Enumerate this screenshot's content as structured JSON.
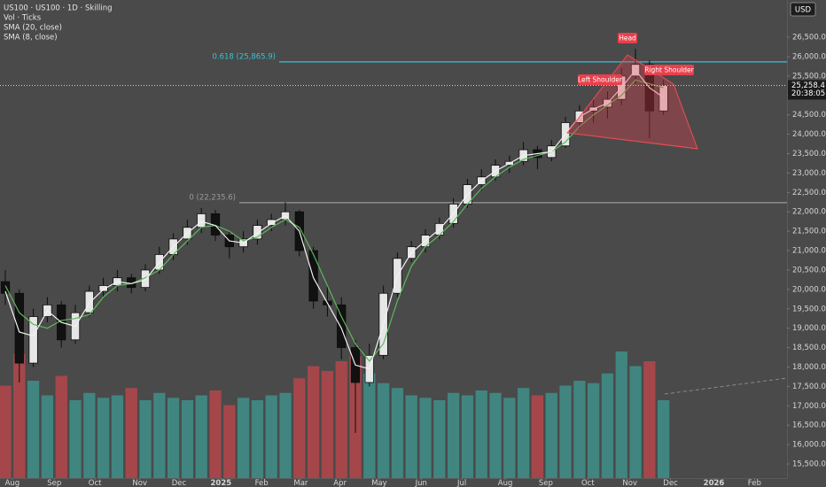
{
  "chart_data": {
    "type": "candlestick",
    "title": "US100 · US100 · 1D · Skilling",
    "currency": "USD",
    "up_color": "#e6e6e6",
    "down_color": "#111111",
    "open": [
      20200,
      19900,
      18100,
      19300,
      19600,
      18700,
      19400,
      19950,
      20100,
      20300,
      20050,
      20500,
      20900,
      21300,
      21600,
      21950,
      21400,
      21100,
      21300,
      21650,
      21800,
      22000,
      21000,
      19700,
      19600,
      18500,
      17600,
      18300,
      19900,
      20800,
      21100,
      21400,
      21700,
      22200,
      22700,
      22900,
      23200,
      23300,
      23600,
      23400,
      23700,
      24300,
      24600,
      24700,
      24900,
      25500,
      25800,
      24600
    ],
    "high": [
      20500,
      20000,
      19500,
      19800,
      19700,
      19600,
      20100,
      20300,
      20500,
      20400,
      20650,
      21100,
      21450,
      21800,
      22100,
      22050,
      21500,
      21500,
      21800,
      21950,
      22250,
      22050,
      21100,
      20100,
      19800,
      18700,
      18600,
      20100,
      20950,
      21250,
      21550,
      21850,
      22350,
      22850,
      23100,
      23350,
      23450,
      23800,
      23700,
      23850,
      24450,
      24750,
      24900,
      25100,
      25700,
      26200,
      25900,
      25400
    ],
    "low": [
      19600,
      17600,
      18000,
      19150,
      18500,
      18600,
      19300,
      19800,
      19950,
      19900,
      19950,
      20400,
      20750,
      21150,
      21450,
      21250,
      20800,
      20950,
      21150,
      21500,
      21650,
      20850,
      19500,
      19300,
      18200,
      16300,
      17500,
      18200,
      19800,
      20700,
      20950,
      21300,
      21600,
      22100,
      22550,
      22800,
      23000,
      23200,
      23100,
      23300,
      23650,
      24150,
      24300,
      24400,
      24750,
      25300,
      23900,
      24500
    ],
    "close": [
      19900,
      18100,
      19300,
      19600,
      18700,
      19400,
      19950,
      20100,
      20300,
      20050,
      20500,
      20900,
      21300,
      21600,
      21950,
      21400,
      21100,
      21300,
      21650,
      21800,
      22000,
      21000,
      19700,
      19600,
      18500,
      17600,
      18300,
      19900,
      20800,
      21100,
      21400,
      21700,
      22200,
      22700,
      22900,
      23200,
      23300,
      23600,
      23400,
      23700,
      24300,
      24600,
      24700,
      24900,
      25500,
      25800,
      24600,
      25258.4
    ],
    "volume": {
      "name": "Vol · Ticks",
      "up_color": "#3f8f8a",
      "down_color": "#b5474a",
      "values": [
        190,
        255,
        200,
        170,
        210,
        160,
        175,
        165,
        170,
        185,
        160,
        175,
        165,
        160,
        170,
        180,
        150,
        165,
        160,
        170,
        175,
        205,
        230,
        220,
        240,
        250,
        215,
        195,
        185,
        170,
        165,
        160,
        175,
        170,
        180,
        175,
        165,
        185,
        170,
        175,
        190,
        200,
        195,
        215,
        260,
        230,
        240,
        160
      ]
    },
    "series": [
      {
        "name": "SMA (20, close)",
        "color": "#5cb85c",
        "values": [
          20100,
          19400,
          19100,
          19000,
          19200,
          19250,
          19350,
          19800,
          20100,
          20150,
          20300,
          20500,
          20900,
          21250,
          21600,
          21650,
          21500,
          21250,
          21350,
          21600,
          21800,
          21600,
          20900,
          20100,
          19300,
          18600,
          18150,
          18600,
          19700,
          20600,
          21100,
          21400,
          21750,
          22200,
          22600,
          22900,
          23150,
          23350,
          23450,
          23550,
          23800,
          24200,
          24500,
          24750,
          25000,
          25400,
          25300,
          25200
        ]
      },
      {
        "name": "SMA (8, close)",
        "color": "#f2f2f2",
        "values": [
          19950,
          18900,
          18800,
          19450,
          19150,
          19050,
          19650,
          20000,
          20200,
          20150,
          20250,
          20700,
          21100,
          21450,
          21750,
          21650,
          21250,
          21200,
          21450,
          21700,
          21900,
          21500,
          20300,
          19650,
          19000,
          18050,
          17950,
          19100,
          20350,
          20950,
          21250,
          21550,
          21950,
          22450,
          22800,
          23050,
          23250,
          23450,
          23500,
          23550,
          24000,
          24450,
          24650,
          24800,
          25200,
          25650,
          25200,
          24950
        ]
      }
    ],
    "ylim": [
      15135,
      27460
    ],
    "yticks": [
      {
        "value": 15500,
        "label": "15,500.0"
      },
      {
        "value": 16000,
        "label": "16,000.0"
      },
      {
        "value": 16500,
        "label": "16,500.0"
      },
      {
        "value": 17000,
        "label": "17,000.0"
      },
      {
        "value": 17500,
        "label": "17,500.0"
      },
      {
        "value": 18000,
        "label": "18,000.0"
      },
      {
        "value": 18500,
        "label": "18,500.0"
      },
      {
        "value": 19000,
        "label": "19,000.0"
      },
      {
        "value": 19500,
        "label": "19,500.0"
      },
      {
        "value": 20000,
        "label": "20,000.0"
      },
      {
        "value": 20500,
        "label": "20,500.0"
      },
      {
        "value": 21000,
        "label": "21,000.0"
      },
      {
        "value": 21500,
        "label": "21,500.0"
      },
      {
        "value": 22000,
        "label": "22,000.0"
      },
      {
        "value": 22500,
        "label": "22,500.0"
      },
      {
        "value": 23000,
        "label": "23,000.0"
      },
      {
        "value": 23500,
        "label": "23,500.0"
      },
      {
        "value": 24000,
        "label": "24,000.0"
      },
      {
        "value": 24500,
        "label": "24,500.0"
      },
      {
        "value": 25000,
        "label": "25,000.0"
      },
      {
        "value": 25500,
        "label": "25,500.0"
      },
      {
        "value": 26000,
        "label": "26,000.0"
      },
      {
        "value": 26500,
        "label": "26,500.0"
      }
    ],
    "xlim": [
      -0.38,
      55.82
    ],
    "xticks": [
      {
        "value": 0.5,
        "label": "Aug"
      },
      {
        "value": 3.5,
        "label": "Sep"
      },
      {
        "value": 6.4,
        "label": "Oct"
      },
      {
        "value": 9.6,
        "label": "Nov"
      },
      {
        "value": 12.4,
        "label": "Dec"
      },
      {
        "value": 15.4,
        "label": "2025"
      },
      {
        "value": 18.3,
        "label": "Feb"
      },
      {
        "value": 21.1,
        "label": "Mar"
      },
      {
        "value": 23.9,
        "label": "Apr"
      },
      {
        "value": 26.7,
        "label": "May"
      },
      {
        "value": 29.7,
        "label": "Jun"
      },
      {
        "value": 32.6,
        "label": "Jul"
      },
      {
        "value": 35.7,
        "label": "Aug"
      },
      {
        "value": 38.6,
        "label": "Sep"
      },
      {
        "value": 41.6,
        "label": "Oct"
      },
      {
        "value": 44.6,
        "label": "Nov"
      },
      {
        "value": 47.5,
        "label": "Dec"
      },
      {
        "value": 50.6,
        "label": "2026"
      },
      {
        "value": 53.5,
        "label": "Feb"
      }
    ],
    "fib_levels": [
      {
        "value": 25865.9,
        "label": "0.618 (25,865.9)",
        "color": "#35c3d3"
      },
      {
        "value": 22235.6,
        "label": "0 (22,235.6)",
        "color": "#9a9a9a"
      }
    ],
    "last_price": {
      "value": 25258.4,
      "label": "25,258.4"
    },
    "countdown": "20:38:05",
    "pattern_labels": [
      "Left Shoulder",
      "Head",
      "Right Shoulder"
    ]
  }
}
